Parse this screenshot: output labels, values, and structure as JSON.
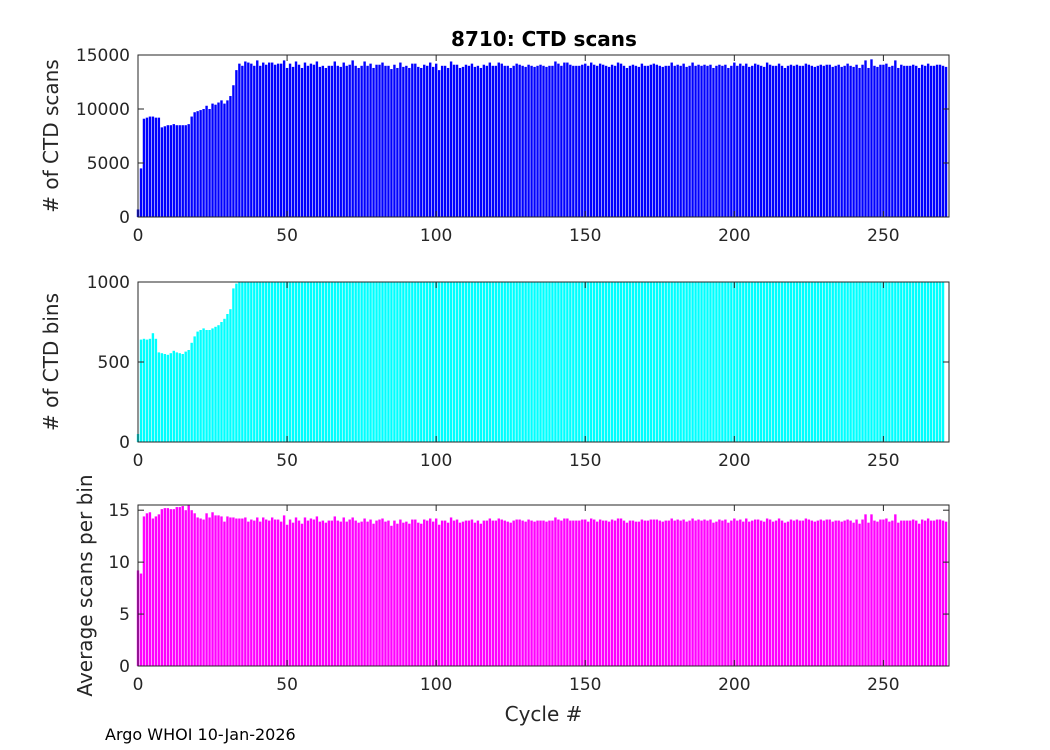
{
  "title": "8710: CTD scans",
  "footer": "Argo WHOI 10-Jan-2026",
  "chart_data": [
    {
      "type": "bar",
      "name": "ctd-scans",
      "color": "#0000ff",
      "title": "8710: CTD scans",
      "xlabel": "",
      "ylabel": "# of CTD scans",
      "xlim": [
        0,
        272
      ],
      "ylim": [
        0,
        15000
      ],
      "xticks": [
        "0",
        "50",
        "100",
        "150",
        "200",
        "250"
      ],
      "yticks": [
        "0",
        "5000",
        "10000",
        "15000"
      ],
      "x_start": 0,
      "values": [
        700,
        4500,
        9100,
        9200,
        9300,
        9300,
        9200,
        9200,
        8300,
        8400,
        8500,
        8500,
        8600,
        8500,
        8500,
        8500,
        8500,
        8600,
        9300,
        9700,
        9800,
        9900,
        10000,
        10300,
        10000,
        10500,
        10400,
        10600,
        10800,
        10500,
        10800,
        11200,
        12200,
        13600,
        14200,
        14000,
        14400,
        14300,
        14200,
        14000,
        14500,
        14000,
        14300,
        14100,
        14300,
        14300,
        14100,
        14200,
        14200,
        14500,
        13800,
        14200,
        13900,
        14400,
        14100,
        13800,
        14300,
        14000,
        14200,
        14100,
        14400,
        13900,
        14000,
        13800,
        14000,
        14000,
        14400,
        14000,
        13900,
        14300,
        14000,
        14100,
        14500,
        14000,
        13800,
        14000,
        14400,
        14000,
        14200,
        13800,
        14100,
        14100,
        14300,
        14000,
        14000,
        13700,
        14100,
        13800,
        14300,
        13900,
        14000,
        13800,
        14200,
        14200,
        13900,
        13800,
        14100,
        14000,
        14300,
        13900,
        14200,
        13600,
        14000,
        14000,
        13800,
        14400,
        14100,
        14100,
        13800,
        13900,
        14100,
        14000,
        14200,
        13900,
        14000,
        13800,
        14100,
        14000,
        14300,
        14000,
        14000,
        14300,
        14200,
        14000,
        14000,
        13800,
        14000,
        14200,
        14100,
        14000,
        13900,
        14100,
        14000,
        13900,
        14000,
        14100,
        14000,
        13900,
        14000,
        14000,
        14400,
        14200,
        14000,
        14300,
        14300,
        14100,
        14000,
        14000,
        14000,
        14100,
        14200,
        14000,
        14300,
        14100,
        14000,
        14200,
        14100,
        14000,
        13900,
        14100,
        14000,
        14300,
        14200,
        14000,
        13800,
        14000,
        14100,
        14000,
        13900,
        14200,
        14000,
        14000,
        14100,
        14200,
        14100,
        14000,
        13900,
        14000,
        14000,
        14300,
        14000,
        14100,
        14000,
        14200,
        13900,
        14000,
        14300,
        14000,
        14100,
        14000,
        14100,
        14000,
        14100,
        13800,
        14000,
        14100,
        14000,
        14100,
        13800,
        14000,
        14300,
        14000,
        14200,
        14000,
        14200,
        13900,
        14000,
        14200,
        14100,
        14000,
        13900,
        14300,
        14100,
        14000,
        14000,
        14200,
        14000,
        13800,
        14000,
        14100,
        14000,
        14100,
        14000,
        14000,
        14200,
        14100,
        14000,
        13900,
        14000,
        14100,
        14000,
        14100,
        14100,
        13900,
        14000,
        14100,
        13900,
        14000,
        14200,
        14000,
        13900,
        14100,
        13800,
        14100,
        14500,
        13800,
        14600,
        14000,
        13900,
        14100,
        14100,
        14200,
        13900,
        14000,
        14500,
        13800,
        14100,
        14000,
        14000,
        14000,
        14100,
        14000,
        13800,
        14100,
        14000,
        14200,
        14000,
        14000,
        14100,
        14100,
        14000,
        13900
      ]
    },
    {
      "type": "bar",
      "name": "ctd-bins",
      "color": "#00ffff",
      "title": "",
      "xlabel": "",
      "ylabel": "# of CTD bins",
      "xlim": [
        0,
        272
      ],
      "ylim": [
        0,
        1000
      ],
      "xticks": [
        "0",
        "50",
        "100",
        "150",
        "200",
        "250"
      ],
      "yticks": [
        "0",
        "500",
        "1000"
      ],
      "x_start": 0,
      "values": [
        50,
        640,
        645,
        640,
        645,
        680,
        645,
        560,
        555,
        550,
        545,
        555,
        570,
        560,
        555,
        550,
        565,
        575,
        620,
        660,
        690,
        700,
        710,
        700,
        700,
        710,
        720,
        730,
        750,
        770,
        800,
        830,
        960,
        990,
        1000,
        1000,
        1000,
        1000,
        1000,
        1000,
        1000,
        1000,
        1000,
        1000,
        1000,
        1000,
        1000,
        1000,
        1000,
        1000,
        1000,
        1000,
        1000,
        1000,
        1000,
        1000,
        1000,
        1000,
        1000,
        1000,
        1000,
        1000,
        1000,
        1000,
        1000,
        1000,
        1000,
        1000,
        1000,
        1000,
        1000,
        1000,
        1000,
        1000,
        1000,
        1000,
        1000,
        1000,
        1000,
        1000,
        1000,
        1000,
        1000,
        1000,
        1000,
        1000,
        1000,
        1000,
        1000,
        1000,
        1000,
        1000,
        1000,
        1000,
        1000,
        1000,
        1000,
        1000,
        1000,
        1000,
        1000,
        1000,
        1000,
        1000,
        1000,
        1000,
        1000,
        1000,
        1000,
        1000,
        1000,
        1000,
        1000,
        1000,
        1000,
        1000,
        1000,
        1000,
        1000,
        1000,
        1000,
        1000,
        1000,
        1000,
        1000,
        1000,
        1000,
        1000,
        1000,
        1000,
        1000,
        1000,
        1000,
        1000,
        1000,
        1000,
        1000,
        1000,
        1000,
        1000,
        1000,
        1000,
        1000,
        1000,
        1000,
        1000,
        1000,
        1000,
        1000,
        1000,
        1000,
        1000,
        1000,
        1000,
        1000,
        1000,
        1000,
        1000,
        1000,
        1000,
        1000,
        1000,
        1000,
        1000,
        1000,
        1000,
        1000,
        1000,
        1000,
        1000,
        1000,
        1000,
        1000,
        1000,
        1000,
        1000,
        1000,
        1000,
        1000,
        1000,
        1000,
        1000,
        1000,
        1000,
        1000,
        1000,
        1000,
        1000,
        1000,
        1000,
        1000,
        1000,
        1000,
        1000,
        1000,
        1000,
        1000,
        1000,
        1000,
        1000,
        1000,
        1000,
        1000,
        1000,
        1000,
        1000,
        1000,
        1000,
        1000,
        1000,
        1000,
        1000,
        1000,
        1000,
        1000,
        1000,
        1000,
        1000,
        1000,
        1000,
        1000,
        1000,
        1000,
        1000,
        1000,
        1000,
        1000,
        1000,
        1000,
        1000,
        1000,
        1000,
        1000,
        1000,
        1000,
        1000,
        1000,
        1000,
        1000,
        1000,
        1000,
        1000,
        1000,
        1000,
        1000,
        1000,
        1000,
        1000,
        1000,
        1000,
        1000,
        1000,
        1000,
        1000,
        1000,
        1000,
        1000,
        1000,
        1000,
        1000,
        1000,
        1000,
        1000,
        1000,
        1000,
        1000,
        1000,
        1000,
        1000,
        1000,
        1000
      ]
    },
    {
      "type": "bar",
      "name": "avg-scans-per-bin",
      "color": "#ff00ff",
      "title": "",
      "xlabel": "Cycle #",
      "ylabel": "Average scans per bin",
      "xlim": [
        0,
        272
      ],
      "ylim": [
        0,
        15.5
      ],
      "xticks": [
        "0",
        "50",
        "100",
        "150",
        "200",
        "250"
      ],
      "yticks": [
        "0",
        "5",
        "10",
        "15"
      ],
      "x_start": 0,
      "values": [
        9.2,
        8.9,
        14.4,
        14.7,
        14.8,
        14.2,
        14.4,
        14.6,
        15.1,
        15.2,
        15.2,
        15.1,
        15.1,
        15.3,
        15.3,
        15.4,
        15.0,
        15.5,
        15.0,
        14.7,
        14.3,
        14.2,
        14.1,
        14.7,
        14.3,
        14.8,
        14.5,
        14.5,
        14.4,
        13.9,
        14.4,
        14.3,
        14.3,
        14.2,
        14.2,
        14.2,
        14.3,
        13.9,
        14.1,
        14.0,
        14.3,
        13.9,
        14.3,
        14.1,
        14.0,
        14.3,
        14.1,
        14.1,
        13.9,
        14.5,
        13.6,
        14.1,
        13.8,
        14.3,
        14.0,
        13.7,
        14.3,
        14.0,
        14.2,
        14.1,
        14.4,
        13.9,
        14.0,
        13.8,
        14.0,
        14.0,
        14.4,
        14.0,
        13.9,
        14.3,
        13.9,
        14.1,
        14.3,
        14.0,
        13.8,
        13.9,
        14.2,
        13.9,
        14.1,
        13.7,
        14.0,
        14.1,
        14.2,
        13.9,
        14.0,
        13.5,
        14.0,
        13.7,
        14.1,
        13.8,
        13.9,
        13.7,
        14.1,
        14.1,
        13.8,
        13.7,
        14.1,
        14.0,
        14.2,
        13.9,
        14.2,
        13.6,
        14.0,
        14.0,
        13.8,
        14.3,
        14.0,
        14.1,
        13.8,
        13.9,
        14.0,
        14.0,
        14.1,
        13.8,
        14.0,
        13.7,
        14.0,
        14.0,
        14.2,
        14.0,
        14.0,
        14.2,
        14.1,
        14.0,
        13.9,
        13.8,
        14.0,
        14.1,
        14.1,
        14.0,
        13.9,
        14.1,
        14.0,
        13.9,
        14.0,
        14.0,
        14.0,
        13.9,
        14.0,
        14.0,
        14.3,
        14.1,
        14.0,
        14.2,
        14.2,
        14.0,
        14.0,
        14.0,
        14.0,
        14.1,
        14.1,
        13.9,
        14.2,
        14.1,
        13.9,
        14.1,
        14.0,
        14.0,
        13.9,
        14.1,
        14.0,
        14.2,
        14.2,
        14.0,
        13.8,
        14.0,
        14.0,
        13.9,
        13.9,
        14.1,
        14.0,
        14.0,
        14.1,
        14.1,
        14.1,
        14.0,
        13.9,
        14.0,
        14.0,
        14.2,
        14.0,
        14.1,
        14.0,
        14.1,
        13.9,
        14.0,
        14.2,
        14.0,
        14.1,
        14.0,
        14.1,
        14.0,
        14.1,
        13.8,
        13.9,
        14.1,
        14.0,
        14.1,
        13.8,
        14.0,
        14.2,
        14.0,
        14.1,
        13.9,
        14.2,
        13.9,
        14.0,
        14.1,
        14.1,
        14.0,
        13.9,
        14.2,
        14.1,
        13.9,
        14.0,
        14.2,
        14.0,
        13.8,
        13.9,
        14.1,
        14.0,
        14.1,
        14.0,
        14.0,
        14.2,
        14.1,
        14.0,
        13.9,
        14.0,
        14.1,
        14.0,
        14.1,
        14.1,
        13.9,
        14.0,
        14.0,
        13.9,
        14.0,
        14.1,
        14.0,
        13.8,
        14.1,
        13.7,
        14.1,
        14.6,
        13.8,
        14.6,
        14.0,
        13.9,
        14.1,
        14.1,
        14.2,
        13.9,
        14.0,
        14.6,
        13.8,
        14.0,
        14.0,
        14.0,
        14.0,
        14.1,
        14.0,
        13.7,
        14.1,
        14.0,
        14.2,
        14.0,
        14.0,
        14.1,
        14.1,
        14.0,
        13.9
      ]
    }
  ]
}
